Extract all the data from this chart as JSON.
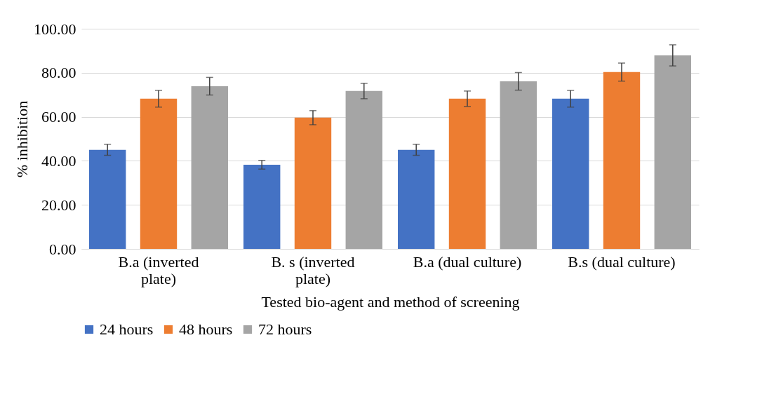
{
  "chart_data": {
    "type": "bar",
    "xlabel": "Tested bio-agent and method of screening",
    "ylabel": "% inhibition",
    "categories": [
      "B.a (inverted plate)",
      "B. s (inverted plate)",
      "B.a (dual culture)",
      "B.s (dual culture)"
    ],
    "series": [
      {
        "name": "24 hours",
        "color": "#4472c4",
        "values": [
          45,
          38.2,
          45,
          68.2
        ],
        "errors": [
          2.5,
          2,
          2.5,
          3.8
        ]
      },
      {
        "name": "48 hours",
        "color": "#ed7d31",
        "values": [
          68.2,
          59.6,
          68.2,
          80.3
        ],
        "errors": [
          3.8,
          3.2,
          3.5,
          4.1
        ]
      },
      {
        "name": "72 hours",
        "color": "#a5a5a5",
        "values": [
          73.9,
          71.7,
          76.1,
          87.9
        ],
        "errors": [
          4,
          3.5,
          4,
          4.8
        ]
      }
    ],
    "ylim": [
      0,
      100
    ],
    "yticks": [
      {
        "value": 0,
        "label": "0.00"
      },
      {
        "value": 20,
        "label": "20.00"
      },
      {
        "value": 40,
        "label": "40.00"
      },
      {
        "value": 60,
        "label": "60.00"
      },
      {
        "value": 80,
        "label": "80.00"
      },
      {
        "value": 100,
        "label": "100.00"
      }
    ],
    "grid": "y",
    "legend": "bottom"
  }
}
